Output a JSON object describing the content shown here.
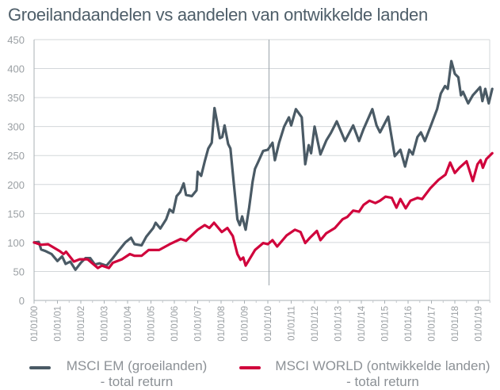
{
  "chart_data": {
    "type": "line",
    "title": "Groeilandaandelen vs aandelen van ontwikkelde landen",
    "xlabel": "",
    "ylabel": "",
    "x_unit": "years since 01/01/2000",
    "ylim": [
      0,
      450
    ],
    "yticks": [
      0,
      50,
      100,
      150,
      200,
      250,
      300,
      350,
      400,
      450
    ],
    "xtick_labels": [
      "01/01/00",
      "01/01/01",
      "01/01/02",
      "01/01/03",
      "01/01/04",
      "01/01/05",
      "01/01/06",
      "01/01/07",
      "01/01/08",
      "01/01/09",
      "01/01/10",
      "01/01/11",
      "01/01/12",
      "01/01/13",
      "01/01/14",
      "01/01/15",
      "01/01/16",
      "01/01/17",
      "01/01/18",
      "01/01/19"
    ],
    "xlim": [
      0,
      19.6
    ],
    "grid": true,
    "marker_line_x": 10.05,
    "legend_placement": "bottom",
    "series": [
      {
        "name": "MSCI EM (groeilanden)",
        "name_line2": "- total return",
        "color": "#4a5a65",
        "x": [
          0,
          0.2,
          0.3,
          0.5,
          0.75,
          1.0,
          1.2,
          1.35,
          1.55,
          1.77,
          2.0,
          2.2,
          2.4,
          2.6,
          2.8,
          3.1,
          3.35,
          3.6,
          3.9,
          4.15,
          4.3,
          4.6,
          4.8,
          5.1,
          5.2,
          5.4,
          5.65,
          5.8,
          5.95,
          6.1,
          6.25,
          6.4,
          6.5,
          6.75,
          6.95,
          7.0,
          7.15,
          7.3,
          7.45,
          7.6,
          7.72,
          7.82,
          7.95,
          8.05,
          8.15,
          8.3,
          8.4,
          8.55,
          8.7,
          8.8,
          8.9,
          9.05,
          9.2,
          9.35,
          9.45,
          9.6,
          9.8,
          10.0,
          10.2,
          10.3,
          10.48,
          10.7,
          10.9,
          11.0,
          11.2,
          11.45,
          11.6,
          11.75,
          11.85,
          12.0,
          12.25,
          12.5,
          12.7,
          12.95,
          13.3,
          13.65,
          13.9,
          14.1,
          14.47,
          14.65,
          14.8,
          15.15,
          15.43,
          15.67,
          15.87,
          16.05,
          16.2,
          16.4,
          16.55,
          16.72,
          16.96,
          17.24,
          17.4,
          17.58,
          17.7,
          17.85,
          18.0,
          18.15,
          18.26,
          18.35,
          18.57,
          18.77,
          19.08,
          19.18,
          19.3,
          19.45,
          19.6
        ],
        "values": [
          100,
          101,
          88,
          85,
          80,
          68,
          76,
          63,
          67,
          53,
          65,
          73,
          73,
          62,
          64,
          60,
          72,
          85,
          100,
          108,
          97,
          95,
          110,
          125,
          134,
          124,
          140,
          157,
          152,
          180,
          187,
          202,
          182,
          180,
          190,
          222,
          215,
          240,
          262,
          272,
          332,
          310,
          280,
          282,
          302,
          270,
          262,
          200,
          140,
          130,
          145,
          122,
          160,
          205,
          227,
          240,
          258,
          260,
          272,
          242,
          272,
          300,
          316,
          302,
          330,
          316,
          235,
          268,
          254,
          300,
          252,
          276,
          289,
          309,
          275,
          302,
          275,
          296,
          330,
          302,
          290,
          317,
          249,
          260,
          231,
          260,
          252,
          282,
          290,
          275,
          300,
          330,
          357,
          370,
          365,
          413,
          391,
          385,
          354,
          360,
          340,
          354,
          368,
          344,
          365,
          340,
          365
        ]
      },
      {
        "name": "MSCI WORLD (ontwikkelde landen)",
        "name_line2": "- total return",
        "color": "#d0043c",
        "x": [
          0,
          0.3,
          0.6,
          1.1,
          1.26,
          1.37,
          1.7,
          1.95,
          2.29,
          2.73,
          2.9,
          3.2,
          3.37,
          3.76,
          4.1,
          4.3,
          4.6,
          4.9,
          5.35,
          5.8,
          6.27,
          6.5,
          7.0,
          7.3,
          7.5,
          7.7,
          8.03,
          8.27,
          8.5,
          8.7,
          8.83,
          8.95,
          9.05,
          9.45,
          9.8,
          10.0,
          10.2,
          10.4,
          10.8,
          11.16,
          11.4,
          11.6,
          11.8,
          12.1,
          12.25,
          12.5,
          12.87,
          13.2,
          13.4,
          13.65,
          13.9,
          14.1,
          14.35,
          14.6,
          14.8,
          15.03,
          15.3,
          15.5,
          15.67,
          15.9,
          16.1,
          16.4,
          16.6,
          16.96,
          17.3,
          17.6,
          17.8,
          18.0,
          18.2,
          18.5,
          18.77,
          18.97,
          19.1,
          19.2,
          19.35,
          19.6
        ],
        "values": [
          100,
          96,
          97,
          85,
          80,
          84,
          67,
          71,
          71,
          56,
          60,
          56,
          65,
          71,
          80,
          77,
          77,
          87,
          87,
          97,
          106,
          103,
          122,
          130,
          125,
          134,
          118,
          125,
          111,
          80,
          70,
          74,
          60,
          87,
          99,
          97,
          104,
          93,
          112,
          122,
          118,
          99,
          108,
          120,
          104,
          116,
          125,
          140,
          144,
          155,
          153,
          165,
          172,
          168,
          172,
          179,
          177,
          160,
          175,
          159,
          172,
          177,
          175,
          194,
          208,
          217,
          238,
          220,
          229,
          240,
          206,
          235,
          242,
          229,
          244,
          254
        ]
      }
    ]
  }
}
